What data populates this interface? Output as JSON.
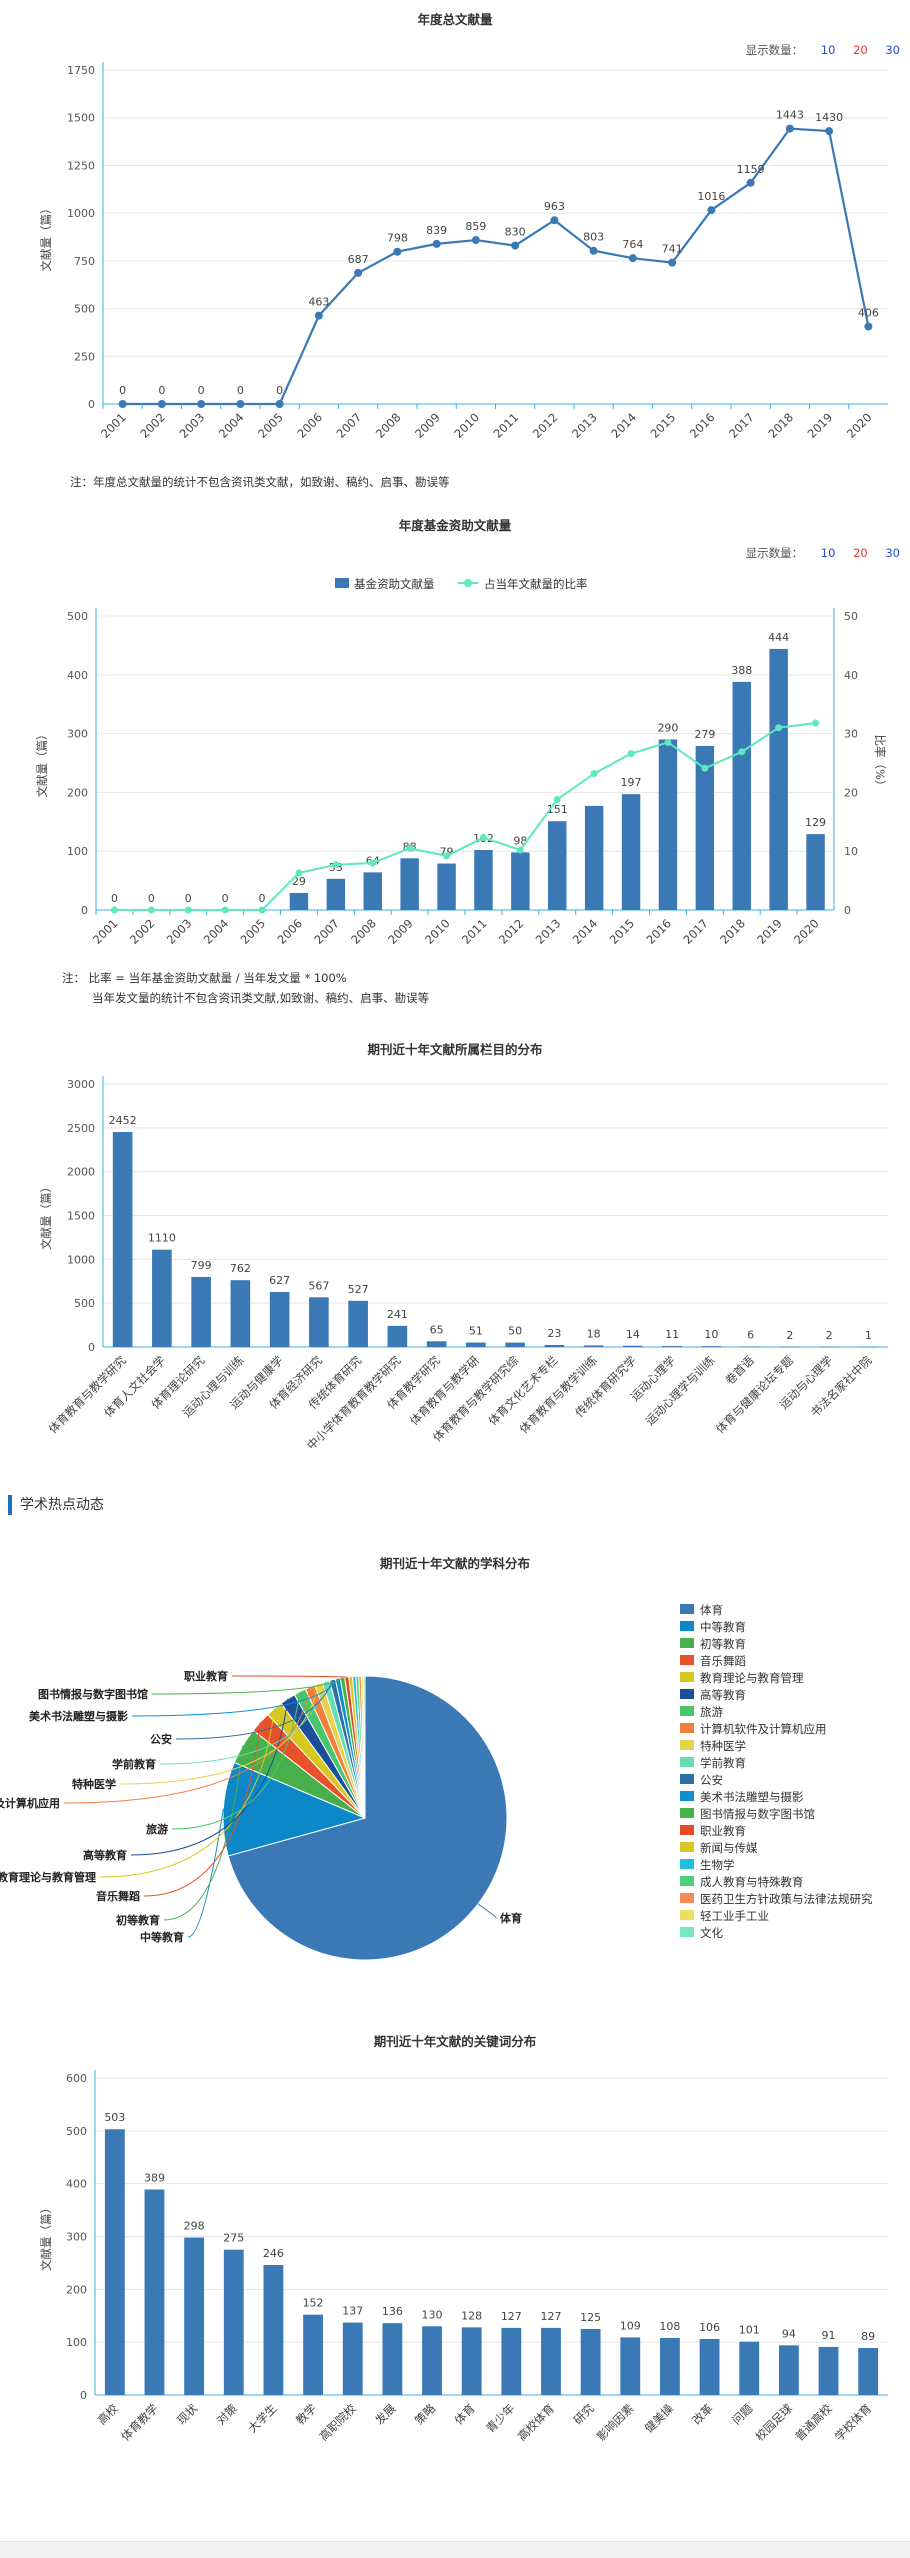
{
  "count_control": {
    "label": "显示数量：",
    "options": [
      "10",
      "20",
      "30"
    ],
    "colors": [
      "#1f4fd6",
      "#e53935",
      "#1f4fd6"
    ]
  },
  "annual_total": {
    "note": "注：年度总文献量的统计不包含资讯类文献，如致谢、稿约、启事、勘误等"
  },
  "fund": {
    "note_line1": "注：  比率 = 当年基金资助文献量 / 当年发文量 * 100%",
    "note_line2": "当年发文量的统计不包含资讯类文献,如致谢、稿约、启事、勘误等"
  },
  "section_header": "学术热点动态",
  "chart_data": [
    {
      "type": "line",
      "title": "年度总文献量",
      "ylabel": "文献量（篇）",
      "ylim": [
        0,
        1750
      ],
      "yticks": [
        0,
        250,
        500,
        750,
        1000,
        1250,
        1500,
        1750
      ],
      "x": [
        "2001",
        "2002",
        "2003",
        "2004",
        "2005",
        "2006",
        "2007",
        "2008",
        "2009",
        "2010",
        "2011",
        "2012",
        "2013",
        "2014",
        "2015",
        "2016",
        "2017",
        "2018",
        "2019",
        "2020"
      ],
      "values": [
        0,
        0,
        0,
        0,
        0,
        463,
        687,
        798,
        839,
        859,
        830,
        963,
        803,
        764,
        741,
        1016,
        1159,
        1443,
        1430,
        406
      ],
      "color": "#3a78b6"
    },
    {
      "type": "bar",
      "title": "年度基金资助文献量",
      "ylabel": "文献量（篇）",
      "y2label": "比率（%）",
      "ylim": [
        0,
        500
      ],
      "yticks": [
        0,
        100,
        200,
        300,
        400,
        500
      ],
      "y2lim": [
        0,
        50
      ],
      "y2ticks": [
        0,
        10,
        20,
        30,
        40,
        50
      ],
      "x": [
        "2001",
        "2002",
        "2003",
        "2004",
        "2005",
        "2006",
        "2007",
        "2008",
        "2009",
        "2010",
        "2011",
        "2012",
        "2013",
        "2014",
        "2015",
        "2016",
        "2017",
        "2018",
        "2019",
        "2020"
      ],
      "series": [
        {
          "name": "基金资助文献量",
          "type": "bar",
          "color": "#3a78b6",
          "values": [
            0,
            0,
            0,
            0,
            0,
            29,
            53,
            64,
            88,
            79,
            102,
            98,
            151,
            177,
            197,
            290,
            279,
            388,
            444,
            129
          ],
          "labels": [
            "0",
            "0",
            "0",
            "0",
            "0",
            "29",
            "53",
            "64",
            "88",
            "79",
            "102",
            "98",
            "151",
            "",
            "197",
            "290",
            "279",
            "388",
            "444",
            "129"
          ]
        },
        {
          "name": "占当年文献量的比率",
          "type": "line",
          "color": "#5ee8c0",
          "values": [
            0,
            0,
            0,
            0,
            0,
            6.3,
            7.7,
            8.0,
            10.5,
            9.2,
            12.3,
            10.2,
            18.8,
            23.2,
            26.6,
            28.5,
            24.1,
            26.9,
            31.0,
            31.8
          ]
        }
      ]
    },
    {
      "type": "bar",
      "title": "期刊近十年文献所属栏目的分布",
      "ylabel": "文献量（篇）",
      "ylim": [
        0,
        3000
      ],
      "yticks": [
        0,
        500,
        1000,
        1500,
        2000,
        2500,
        3000
      ],
      "categories": [
        "体育教育与教学研究",
        "体育人文社会学",
        "体育理论研究",
        "运动心理与训练",
        "运动与健康学",
        "体育经济研究",
        "传统体育研究",
        "中小学体育教育教学研究",
        "体育教学研究",
        "体育教育与教学研",
        "体育教育与教学研究综",
        "体育文化艺术专栏",
        "体育教育与教学训练",
        "传统体育研究学",
        "运动心理学",
        "运动心理学与训练",
        "卷首语",
        "体育与健康论坛专题",
        "运动与心理学",
        "书法名家社中院"
      ],
      "values": [
        2452,
        1110,
        799,
        762,
        627,
        567,
        527,
        241,
        65,
        51,
        50,
        23,
        18,
        14,
        11,
        10,
        6,
        2,
        2,
        1
      ],
      "color": "#3a78b6"
    },
    {
      "type": "pie",
      "title": "期刊近十年文献的学科分布",
      "labels": [
        "体育",
        "中等教育",
        "初等教育",
        "音乐舞蹈",
        "教育理论与教育管理",
        "高等教育",
        "旅游",
        "计算机软件及计算机应用",
        "特种医学",
        "学前教育",
        "公安",
        "美术书法雕塑与摄影",
        "图书情报与数字图书馆",
        "职业教育",
        "新闻与传媒",
        "生物学",
        "成人教育与特殊教育",
        "医药卫生方针政策与法律法规研究",
        "轻工业手工业",
        "文化"
      ],
      "values": [
        7600,
        1150,
        450,
        260,
        210,
        190,
        150,
        120,
        100,
        90,
        70,
        60,
        55,
        50,
        45,
        40,
        35,
        30,
        25,
        20
      ],
      "colors": [
        "#3a78b6",
        "#0c87c8",
        "#47b04b",
        "#e8522a",
        "#d6c81e",
        "#1a4f9c",
        "#49c66a",
        "#f27f3a",
        "#e8d24b",
        "#67ddb6",
        "#2f6fa8",
        "#0f8fd0",
        "#44b34a",
        "#e44b22",
        "#d8c621",
        "#1fc0dd",
        "#4fd07a",
        "#f58a52",
        "#ece061",
        "#77e8bb"
      ],
      "callouts": [
        "体育",
        "中等教育",
        "初等教育",
        "音乐舞蹈",
        "教育理论与教育管理",
        "高等教育",
        "旅游",
        "计算机软件及计算机应用",
        "特种医学",
        "学前教育",
        "公安",
        "美术书法雕塑与摄影",
        "图书情报与数字图书馆",
        "职业教育"
      ]
    },
    {
      "type": "bar",
      "title": "期刊近十年文献的关键词分布",
      "ylabel": "文献量（篇）",
      "ylim": [
        0,
        600
      ],
      "yticks": [
        0,
        100,
        200,
        300,
        400,
        500,
        600
      ],
      "categories": [
        "高校",
        "体育教学",
        "现状",
        "对策",
        "大学生",
        "教学",
        "高职院校",
        "发展",
        "策略",
        "体育",
        "青少年",
        "高校体育",
        "研究",
        "影响因素",
        "健美操",
        "改革",
        "问题",
        "校园足球",
        "普通高校",
        "学校体育"
      ],
      "values": [
        503,
        389,
        298,
        275,
        246,
        152,
        137,
        136,
        130,
        128,
        127,
        127,
        125,
        109,
        108,
        106,
        101,
        94,
        91,
        89
      ],
      "color": "#3a78b6"
    }
  ]
}
